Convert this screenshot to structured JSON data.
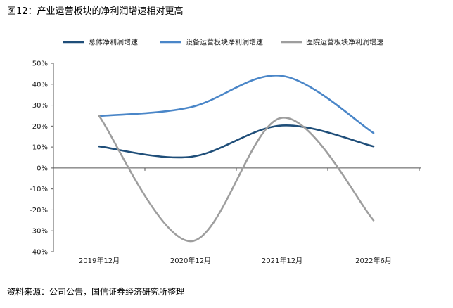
{
  "title": "图12：产业运营板块的净利润增速相对更高",
  "source": "资料来源：公司公告，国信证券经济研究所整理",
  "chart_data": {
    "type": "line",
    "smooth": true,
    "categories": [
      "2019年12月",
      "2020年12月",
      "2021年12月",
      "2022年6月"
    ],
    "series": [
      {
        "name": "总体净利润增速",
        "values": [
          10.3,
          5.3,
          20.3,
          10.3
        ],
        "color": "#1f4e79"
      },
      {
        "name": "设备运营板块净利润增速",
        "values": [
          24.8,
          29.0,
          44.0,
          16.7
        ],
        "color": "#4a86c8"
      },
      {
        "name": "医院运营板块净利润增速",
        "values": [
          24.8,
          -35.0,
          24.0,
          -25.0
        ],
        "color": "#9e9e9e"
      }
    ],
    "ylim": [
      -40,
      50
    ],
    "yticks": [
      -40,
      -30,
      -20,
      -10,
      0,
      10,
      20,
      30,
      40,
      50
    ],
    "ytick_labels": [
      "-40%",
      "-30%",
      "-20%",
      "-10%",
      "0%",
      "10%",
      "20%",
      "30%",
      "40%",
      "50%"
    ],
    "grid": false,
    "legend_position": "top"
  }
}
